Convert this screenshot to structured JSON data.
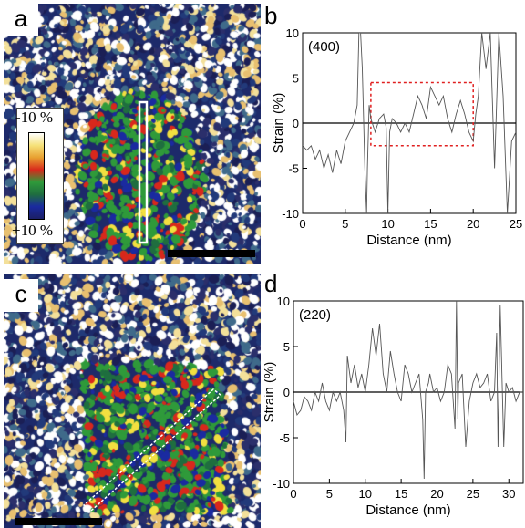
{
  "panels": {
    "a": {
      "letter": "a"
    },
    "b": {
      "letter": "b"
    },
    "c": {
      "letter": "c"
    },
    "d": {
      "letter": "d"
    }
  },
  "colorbar": {
    "top_label": "-10 %",
    "bottom_label": "+10 %",
    "colors": [
      "#ffffff",
      "#f6e27a",
      "#e8a030",
      "#d8281c",
      "#2f9a3a",
      "#1f6e3f",
      "#1a2aa0",
      "#1b1f66"
    ]
  },
  "chart_data": [
    {
      "id": "b",
      "type": "line",
      "annotation": "(400)",
      "xlabel": "Distance (nm)",
      "ylabel": "Strain (%)",
      "xlim": [
        0,
        25
      ],
      "ylim": [
        -10,
        10
      ],
      "xticks": [
        0,
        5,
        10,
        15,
        20,
        25
      ],
      "yticks": [
        -10,
        -5,
        0,
        5,
        10
      ],
      "highlight_box": {
        "x": [
          8,
          20
        ],
        "y": [
          -2.5,
          4.5
        ],
        "color": "#e02020"
      },
      "x": [
        0,
        0.5,
        1,
        1.5,
        2,
        2.5,
        3,
        3.5,
        4,
        4.5,
        5,
        5.5,
        6,
        6.4,
        6.6,
        6.8,
        7.0,
        7.3,
        7.5,
        7.6,
        7.8,
        8.0,
        8.5,
        9.0,
        9.5,
        9.8,
        10.0,
        10.2,
        10.5,
        11,
        11.5,
        12,
        12.5,
        13,
        13.5,
        14,
        14.5,
        15,
        15.5,
        16,
        16.5,
        17,
        17.5,
        18,
        18.5,
        19,
        19.5,
        20,
        20.3,
        20.6,
        21,
        21.5,
        22,
        22.5,
        23,
        23.5,
        24,
        24.5,
        25
      ],
      "y": [
        -2.5,
        -3,
        -2.5,
        -4,
        -3,
        -5,
        -3.5,
        -5.5,
        -3,
        -4.5,
        -2,
        -1,
        0,
        2,
        10,
        10,
        6,
        -5,
        -10,
        -5,
        2,
        0.5,
        -1,
        0.5,
        1,
        -0.5,
        -10,
        -1,
        0.5,
        0,
        -1,
        0,
        -1,
        1,
        3,
        2,
        0.5,
        4,
        3,
        2,
        3,
        0.5,
        -1,
        1,
        2.5,
        1,
        -1,
        -2,
        1,
        3,
        10,
        6,
        10,
        -5,
        10,
        3,
        -10,
        -2,
        -1
      ]
    },
    {
      "id": "d",
      "type": "line",
      "annotation": "(220)",
      "xlabel": "Distance (nm)",
      "ylabel": "Strain (%)",
      "xlim": [
        0,
        32
      ],
      "ylim": [
        -10,
        10
      ],
      "xticks": [
        0,
        5,
        10,
        15,
        20,
        25,
        30
      ],
      "yticks": [
        -10,
        -5,
        0,
        5,
        10
      ],
      "x": [
        0,
        0.5,
        1,
        1.5,
        2,
        2.5,
        3,
        3.5,
        4,
        4.5,
        5,
        5.5,
        6,
        6.5,
        7,
        7.3,
        7.5,
        8,
        8.5,
        9,
        9.5,
        10,
        10.5,
        11,
        11.5,
        12,
        12.5,
        13,
        13.5,
        14,
        14.5,
        15,
        15.5,
        16,
        16.5,
        17,
        17.5,
        18,
        18.2,
        18.4,
        18.8,
        19,
        19.5,
        20,
        20.5,
        21,
        21.5,
        22,
        22.5,
        22.7,
        22.9,
        23,
        23.5,
        24,
        24.5,
        25,
        25.5,
        26,
        26.5,
        27,
        27.5,
        28,
        28.3,
        28.5,
        28.8,
        29.3,
        29.6,
        30,
        30.5,
        31,
        31.5,
        32
      ],
      "y": [
        -1,
        -2.5,
        -2,
        -0.5,
        -1,
        -2,
        0,
        -1,
        1,
        -1,
        -2,
        0,
        -1,
        0,
        -2,
        -5.5,
        4,
        1,
        3,
        0.5,
        2,
        0,
        3,
        7,
        4,
        7.5,
        2,
        0,
        4.5,
        2,
        0,
        -1,
        3,
        2,
        0,
        1,
        2,
        -3,
        -9.5,
        0,
        1,
        2,
        0,
        0.5,
        -1,
        0,
        3,
        2,
        -4,
        10,
        -3,
        1,
        2,
        -6,
        -1,
        1,
        2,
        0.5,
        1,
        2,
        -1,
        0,
        6.5,
        -6,
        9.5,
        -6,
        1,
        0,
        0.5,
        -1,
        0,
        0
      ]
    }
  ]
}
